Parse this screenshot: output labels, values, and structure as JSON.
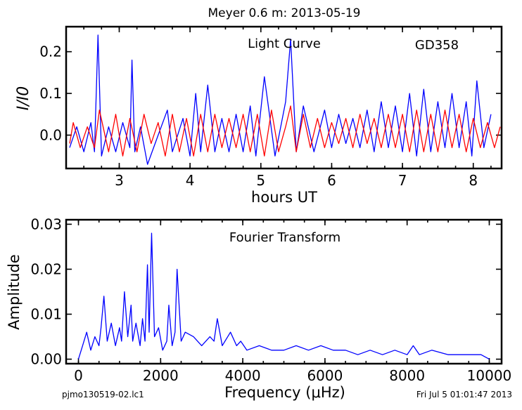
{
  "header": {
    "title": "Meyer 0.6 m:  2013-05-19"
  },
  "footer": {
    "left": "pjmo130519-02.lc1",
    "right": "Fri Jul  5 01:01:47 2013"
  },
  "colors": {
    "observed": "#0000ff",
    "model": "#ff0000",
    "axes": "#000000"
  },
  "chart_data": [
    {
      "type": "line",
      "annotations": [
        "Light Curve",
        "GD358"
      ],
      "xlabel": "hours UT",
      "ylabel": "I/I0",
      "xlim": [
        2.25,
        8.4
      ],
      "ylim": [
        -0.08,
        0.26
      ],
      "xticks": [
        3,
        4,
        5,
        6,
        7,
        8
      ],
      "yticks": [
        0.0,
        0.1,
        0.2
      ],
      "ytick_labels": [
        "0.0",
        "0.1",
        "0.2"
      ],
      "grid": false,
      "series": [
        {
          "color": "#0000ff",
          "x": [
            2.3,
            2.4,
            2.5,
            2.6,
            2.65,
            2.7,
            2.75,
            2.85,
            2.95,
            3.05,
            3.15,
            3.18,
            3.22,
            3.3,
            3.4,
            3.55,
            3.68,
            3.75,
            3.9,
            4.0,
            4.08,
            4.15,
            4.25,
            4.35,
            4.45,
            4.55,
            4.65,
            4.75,
            4.85,
            4.93,
            5.05,
            5.2,
            5.35,
            5.42,
            5.5,
            5.6,
            5.75,
            5.9,
            6.0,
            6.1,
            6.2,
            6.3,
            6.4,
            6.5,
            6.6,
            6.7,
            6.8,
            6.9,
            7.0,
            7.1,
            7.2,
            7.3,
            7.4,
            7.5,
            7.6,
            7.7,
            7.8,
            7.9,
            7.98,
            8.05,
            8.15,
            8.25
          ],
          "y": [
            -0.03,
            0.02,
            -0.04,
            0.03,
            -0.04,
            0.24,
            -0.05,
            0.02,
            -0.04,
            0.03,
            -0.03,
            0.18,
            -0.04,
            0.02,
            -0.07,
            0.0,
            0.06,
            -0.04,
            0.04,
            -0.05,
            0.1,
            -0.04,
            0.12,
            -0.04,
            0.04,
            -0.04,
            0.05,
            -0.04,
            0.07,
            -0.05,
            0.14,
            -0.05,
            0.08,
            0.23,
            -0.04,
            0.07,
            -0.04,
            0.06,
            -0.03,
            0.05,
            -0.02,
            0.04,
            -0.03,
            0.06,
            -0.04,
            0.08,
            -0.03,
            0.07,
            -0.04,
            0.1,
            -0.05,
            0.11,
            -0.04,
            0.08,
            -0.03,
            0.1,
            -0.03,
            0.08,
            -0.05,
            0.13,
            -0.03,
            0.05
          ]
        },
        {
          "color": "#ff0000",
          "x": [
            2.3,
            2.35,
            2.45,
            2.55,
            2.65,
            2.72,
            2.85,
            2.95,
            3.05,
            3.15,
            3.25,
            3.35,
            3.45,
            3.55,
            3.65,
            3.75,
            3.85,
            3.95,
            4.05,
            4.15,
            4.25,
            4.35,
            4.45,
            4.55,
            4.65,
            4.75,
            4.85,
            4.95,
            5.05,
            5.15,
            5.25,
            5.35,
            5.42,
            5.5,
            5.6,
            5.7,
            5.8,
            5.9,
            6.0,
            6.1,
            6.2,
            6.3,
            6.4,
            6.5,
            6.6,
            6.7,
            6.8,
            6.9,
            7.0,
            7.1,
            7.2,
            7.3,
            7.4,
            7.5,
            7.6,
            7.7,
            7.8,
            7.9,
            8.0,
            8.1,
            8.2,
            8.3,
            8.38
          ],
          "y": [
            -0.02,
            0.03,
            -0.03,
            0.02,
            -0.03,
            0.06,
            -0.04,
            0.05,
            -0.05,
            0.04,
            -0.04,
            0.05,
            -0.02,
            0.03,
            -0.05,
            0.05,
            -0.04,
            0.04,
            -0.05,
            0.05,
            -0.04,
            0.05,
            -0.03,
            0.04,
            -0.03,
            0.05,
            -0.04,
            0.05,
            -0.05,
            0.06,
            -0.04,
            0.02,
            0.07,
            -0.04,
            0.05,
            -0.03,
            0.04,
            -0.03,
            0.03,
            -0.02,
            0.04,
            -0.03,
            0.05,
            -0.02,
            0.04,
            -0.03,
            0.05,
            -0.03,
            0.05,
            -0.04,
            0.06,
            -0.04,
            0.05,
            -0.04,
            0.06,
            -0.03,
            0.05,
            -0.04,
            0.04,
            -0.03,
            0.03,
            -0.03,
            0.02
          ]
        }
      ]
    },
    {
      "type": "line",
      "annotations": [
        "Fourier Transform"
      ],
      "xlabel": "Frequency (μHz)",
      "ylabel": "Amplitude",
      "xlim": [
        -300,
        10300
      ],
      "ylim": [
        -0.001,
        0.031
      ],
      "xticks": [
        0,
        2000,
        4000,
        6000,
        8000,
        10000
      ],
      "yticks": [
        0.0,
        0.01,
        0.02,
        0.03
      ],
      "ytick_labels": [
        "0.00",
        "0.01",
        "0.02",
        "0.03"
      ],
      "grid": false,
      "series": [
        {
          "color": "#0000ff",
          "x": [
            0,
            100,
            200,
            300,
            400,
            500,
            550,
            620,
            700,
            800,
            900,
            1000,
            1050,
            1120,
            1200,
            1280,
            1320,
            1400,
            1500,
            1560,
            1620,
            1680,
            1720,
            1780,
            1850,
            1950,
            2050,
            2150,
            2200,
            2280,
            2350,
            2400,
            2500,
            2600,
            2800,
            3000,
            3200,
            3300,
            3380,
            3500,
            3700,
            3850,
            3950,
            4100,
            4400,
            4700,
            5000,
            5300,
            5600,
            5900,
            6200,
            6500,
            6800,
            7100,
            7400,
            7700,
            8000,
            8150,
            8300,
            8600,
            9000,
            9400,
            9800,
            10000
          ],
          "y": [
            0.0,
            0.003,
            0.006,
            0.002,
            0.005,
            0.003,
            0.007,
            0.014,
            0.004,
            0.008,
            0.003,
            0.007,
            0.004,
            0.015,
            0.005,
            0.012,
            0.004,
            0.008,
            0.003,
            0.009,
            0.004,
            0.021,
            0.006,
            0.028,
            0.005,
            0.007,
            0.002,
            0.004,
            0.012,
            0.003,
            0.006,
            0.02,
            0.004,
            0.006,
            0.005,
            0.003,
            0.005,
            0.004,
            0.009,
            0.003,
            0.006,
            0.003,
            0.004,
            0.002,
            0.003,
            0.002,
            0.002,
            0.003,
            0.002,
            0.003,
            0.002,
            0.002,
            0.001,
            0.002,
            0.001,
            0.002,
            0.001,
            0.003,
            0.001,
            0.002,
            0.001,
            0.001,
            0.001,
            0.0
          ]
        }
      ]
    }
  ]
}
